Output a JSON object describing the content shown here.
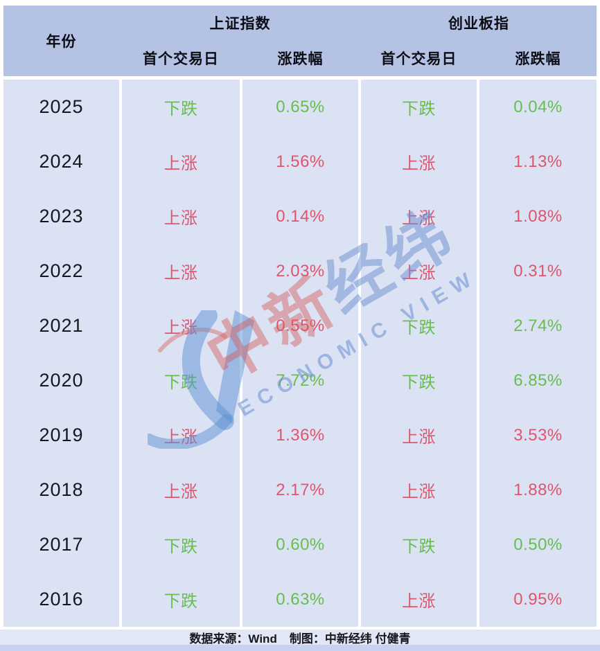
{
  "table": {
    "year_header": "年份",
    "groups": [
      {
        "label": "上证指数",
        "subs": [
          "首个交易日",
          "涨跌幅"
        ]
      },
      {
        "label": "创业板指",
        "subs": [
          "首个交易日",
          "涨跌幅"
        ]
      }
    ],
    "rows": [
      {
        "year": "2025",
        "cells": [
          {
            "text": "下跌",
            "tone": "down"
          },
          {
            "text": "0.65%",
            "tone": "down"
          },
          {
            "text": "下跌",
            "tone": "down"
          },
          {
            "text": "0.04%",
            "tone": "down"
          }
        ]
      },
      {
        "year": "2024",
        "cells": [
          {
            "text": "上涨",
            "tone": "up"
          },
          {
            "text": "1.56%",
            "tone": "up"
          },
          {
            "text": "上涨",
            "tone": "up"
          },
          {
            "text": "1.13%",
            "tone": "up"
          }
        ]
      },
      {
        "year": "2023",
        "cells": [
          {
            "text": "上涨",
            "tone": "up"
          },
          {
            "text": "0.14%",
            "tone": "up"
          },
          {
            "text": "上涨",
            "tone": "up"
          },
          {
            "text": "1.08%",
            "tone": "up"
          }
        ]
      },
      {
        "year": "2022",
        "cells": [
          {
            "text": "上涨",
            "tone": "up"
          },
          {
            "text": "2.03%",
            "tone": "up"
          },
          {
            "text": "上涨",
            "tone": "up"
          },
          {
            "text": "0.31%",
            "tone": "up"
          }
        ]
      },
      {
        "year": "2021",
        "cells": [
          {
            "text": "上涨",
            "tone": "up"
          },
          {
            "text": "0.55%",
            "tone": "up"
          },
          {
            "text": "下跌",
            "tone": "down"
          },
          {
            "text": "2.74%",
            "tone": "down"
          }
        ]
      },
      {
        "year": "2020",
        "cells": [
          {
            "text": "下跌",
            "tone": "down"
          },
          {
            "text": "7.72%",
            "tone": "down"
          },
          {
            "text": "下跌",
            "tone": "down"
          },
          {
            "text": "6.85%",
            "tone": "down"
          }
        ]
      },
      {
        "year": "2019",
        "cells": [
          {
            "text": "上涨",
            "tone": "up"
          },
          {
            "text": "1.36%",
            "tone": "up"
          },
          {
            "text": "上涨",
            "tone": "up"
          },
          {
            "text": "3.53%",
            "tone": "up"
          }
        ]
      },
      {
        "year": "2018",
        "cells": [
          {
            "text": "上涨",
            "tone": "up"
          },
          {
            "text": "2.17%",
            "tone": "up"
          },
          {
            "text": "上涨",
            "tone": "up"
          },
          {
            "text": "1.88%",
            "tone": "up"
          }
        ]
      },
      {
        "year": "2017",
        "cells": [
          {
            "text": "下跌",
            "tone": "down"
          },
          {
            "text": "0.60%",
            "tone": "down"
          },
          {
            "text": "下跌",
            "tone": "down"
          },
          {
            "text": "0.50%",
            "tone": "down"
          }
        ]
      },
      {
        "year": "2016",
        "cells": [
          {
            "text": "下跌",
            "tone": "down"
          },
          {
            "text": "0.63%",
            "tone": "down"
          },
          {
            "text": "上涨",
            "tone": "up"
          },
          {
            "text": "0.95%",
            "tone": "up"
          }
        ]
      }
    ]
  },
  "chart_data": {
    "type": "table",
    "columns": [
      "年份",
      "上证指数 首个交易日",
      "上证指数 涨跌幅",
      "创业板指 首个交易日",
      "创业板指 涨跌幅"
    ],
    "rows": [
      [
        "2025",
        "下跌",
        "0.65%",
        "下跌",
        "0.04%"
      ],
      [
        "2024",
        "上涨",
        "1.56%",
        "上涨",
        "1.13%"
      ],
      [
        "2023",
        "上涨",
        "0.14%",
        "上涨",
        "1.08%"
      ],
      [
        "2022",
        "上涨",
        "2.03%",
        "上涨",
        "0.31%"
      ],
      [
        "2021",
        "上涨",
        "0.55%",
        "下跌",
        "2.74%"
      ],
      [
        "2020",
        "下跌",
        "7.72%",
        "下跌",
        "6.85%"
      ],
      [
        "2019",
        "上涨",
        "1.36%",
        "上涨",
        "3.53%"
      ],
      [
        "2018",
        "上涨",
        "2.17%",
        "上涨",
        "1.88%"
      ],
      [
        "2017",
        "下跌",
        "0.60%",
        "下跌",
        "0.50%"
      ],
      [
        "2016",
        "下跌",
        "0.63%",
        "上涨",
        "0.95%"
      ]
    ],
    "legend": {
      "上涨": "red (#e0546c)",
      "下跌": "green (#68bd4f)"
    }
  },
  "watermark": {
    "cn_red": "中新",
    "cn_blue": "经纬",
    "en": "ECONOMIC VIEW"
  },
  "footer": {
    "source": "数据来源：Wind",
    "credit": "制图：中新经纬 付健青"
  },
  "colors": {
    "up": "#e0546c",
    "down": "#68bd4f",
    "header_bg": "#b4c2e4",
    "cell_bg": "#dbe2f3",
    "footer_bg": "#e1e7f6",
    "bottom_band": "#c7d3ee",
    "watermark_blue": "#5b8fd4",
    "watermark_red": "#d97070"
  }
}
